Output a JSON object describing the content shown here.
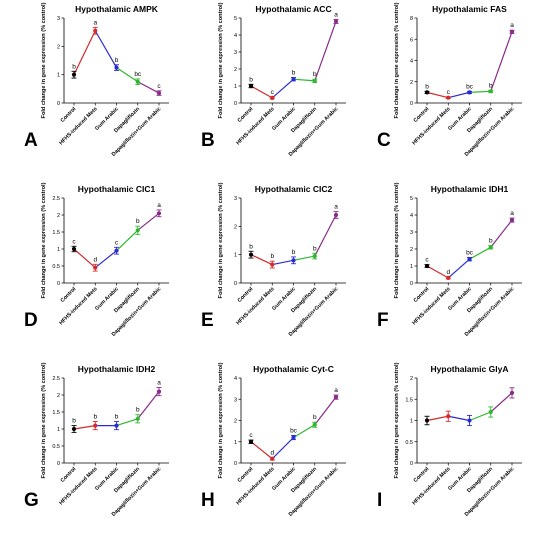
{
  "colors": {
    "control": "#000000",
    "hfhs": "#d42a2a",
    "gum": "#2b2bd6",
    "dapa": "#2db82d",
    "combo": "#8a2a8a"
  },
  "categories": [
    "Control",
    "HFHS-induced Mets",
    "Gum Arabic",
    "Dapagliflozin",
    "Dapagliflozin+Gum Arabic"
  ],
  "chart_data": [
    {
      "type": "line",
      "panel": "A",
      "title": "Hypothalamic AMPK",
      "ylabel": "Fold change in gene expression (% control)",
      "ylim": [
        0,
        3
      ],
      "yticks": [
        0,
        1,
        2,
        3
      ],
      "categories": [
        "Control",
        "HFHS-induced Mets",
        "Gum Arabic",
        "Dapagliflozin",
        "Dapagliflozin+Gum Arabic"
      ],
      "values": [
        1.0,
        2.55,
        1.25,
        0.75,
        0.35
      ],
      "errors": [
        0.12,
        0.12,
        0.1,
        0.1,
        0.08
      ],
      "letters": [
        "b",
        "a",
        "b",
        "bc",
        "c"
      ]
    },
    {
      "type": "line",
      "panel": "B",
      "title": "Hypothalamic ACC",
      "ylabel": "Fold change in gene expression (% control)",
      "ylim": [
        0,
        5
      ],
      "yticks": [
        0,
        1,
        2,
        3,
        4,
        5
      ],
      "categories": [
        "Control",
        "HFHS-induced Mets",
        "Gum Arabic",
        "Dapagliflozin",
        "Dapagliflozin+Gum Arabic"
      ],
      "values": [
        1.0,
        0.3,
        1.4,
        1.3,
        4.8
      ],
      "errors": [
        0.1,
        0.06,
        0.1,
        0.1,
        0.12
      ],
      "letters": [
        "b",
        "c",
        "b",
        "b",
        "a"
      ]
    },
    {
      "type": "line",
      "panel": "C",
      "title": "Hypothalamic FAS",
      "ylabel": "Fold change in gene expression (% control)",
      "ylim": [
        0,
        8
      ],
      "yticks": [
        0,
        2,
        4,
        6,
        8
      ],
      "categories": [
        "Control",
        "HFHS-induced Mets",
        "Gum Arabic",
        "Dapagliflozin",
        "Dapagliflozin+Gum Arabic"
      ],
      "values": [
        1.0,
        0.5,
        1.0,
        1.1,
        6.7
      ],
      "errors": [
        0.1,
        0.08,
        0.1,
        0.1,
        0.15
      ],
      "letters": [
        "b",
        "c",
        "bc",
        "b",
        "a"
      ]
    },
    {
      "type": "line",
      "panel": "D",
      "title": "Hypothalamic CIC1",
      "ylabel": "Fold change in gene expression (% control)",
      "ylim": [
        0,
        2.5
      ],
      "yticks": [
        0,
        0.5,
        1.0,
        1.5,
        2.0,
        2.5
      ],
      "categories": [
        "Control",
        "HFHS-induced Mets",
        "Gum Arabic",
        "Dapagliflozin",
        "Dapagliflozin+Gum Arabic"
      ],
      "values": [
        1.0,
        0.45,
        0.95,
        1.55,
        2.05
      ],
      "errors": [
        0.08,
        0.1,
        0.1,
        0.12,
        0.1
      ],
      "letters": [
        "c",
        "d",
        "c",
        "b",
        "a"
      ]
    },
    {
      "type": "line",
      "panel": "E",
      "title": "Hypothalamic CIC2",
      "ylabel": "Fold change in gene expression (% control)",
      "ylim": [
        0,
        3
      ],
      "yticks": [
        0,
        1,
        2,
        3
      ],
      "categories": [
        "Control",
        "HFHS-induced Mets",
        "Gum Arabic",
        "Dapagliflozin",
        "Dapagliflozin+Gum Arabic"
      ],
      "values": [
        1.0,
        0.65,
        0.8,
        0.95,
        2.4
      ],
      "errors": [
        0.12,
        0.12,
        0.12,
        0.1,
        0.12
      ],
      "letters": [
        "b",
        "b",
        "b",
        "b",
        "a"
      ]
    },
    {
      "type": "line",
      "panel": "F",
      "title": "Hypothalamic IDH1",
      "ylabel": "Fold change in gene expression (% control)",
      "ylim": [
        0,
        5
      ],
      "yticks": [
        0,
        1,
        2,
        3,
        4,
        5
      ],
      "categories": [
        "Control",
        "HFHS-induced Mets",
        "Gum Arabic",
        "Dapagliflozin",
        "Dapagliflozin+Gum Arabic"
      ],
      "values": [
        1.0,
        0.3,
        1.4,
        2.1,
        3.7
      ],
      "errors": [
        0.08,
        0.06,
        0.1,
        0.1,
        0.12
      ],
      "letters": [
        "c",
        "d",
        "bc",
        "b",
        "a"
      ]
    },
    {
      "type": "line",
      "panel": "G",
      "title": "Hypothalamic IDH2",
      "ylabel": "Fold change in gene expression (% control)",
      "ylim": [
        0,
        2.5
      ],
      "yticks": [
        0,
        0.5,
        1.0,
        1.5,
        2.0,
        2.5
      ],
      "categories": [
        "Control",
        "HFHS-induced Mets",
        "Gum Arabic",
        "Dapagliflozin",
        "Dapagliflozin+Gum Arabic"
      ],
      "values": [
        1.0,
        1.1,
        1.1,
        1.3,
        2.1
      ],
      "errors": [
        0.1,
        0.12,
        0.12,
        0.12,
        0.12
      ],
      "letters": [
        "b",
        "b",
        "b",
        "b",
        "a"
      ]
    },
    {
      "type": "line",
      "panel": "H",
      "title": "Hypothalamic Cyt-C",
      "ylabel": "Fold change in gene expression (% control)",
      "ylim": [
        0,
        4
      ],
      "yticks": [
        0,
        1,
        2,
        3,
        4
      ],
      "categories": [
        "Control",
        "HFHS-induced Mets",
        "Gum Arabic",
        "Dapagliflozin",
        "Dapagliflozin+Gum Arabic"
      ],
      "values": [
        1.0,
        0.2,
        1.2,
        1.8,
        3.1
      ],
      "errors": [
        0.08,
        0.06,
        0.1,
        0.12,
        0.1
      ],
      "letters": [
        "c",
        "d",
        "bc",
        "b",
        "a"
      ]
    },
    {
      "type": "line",
      "panel": "I",
      "title": "Hypothalamic GlyA",
      "ylabel": "Fold change in gene expression (% control)",
      "ylim": [
        0,
        2.0
      ],
      "yticks": [
        0,
        0.5,
        1.0,
        1.5,
        2.0
      ],
      "categories": [
        "Control",
        "HFHS-induced Mets",
        "Gum Arabic",
        "Dapagliflozin",
        "Dapagliflozin+Gum Arabic"
      ],
      "values": [
        1.0,
        1.1,
        1.0,
        1.2,
        1.65
      ],
      "errors": [
        0.1,
        0.12,
        0.12,
        0.12,
        0.12
      ],
      "letters": [
        "",
        "",
        "",
        "",
        ""
      ]
    }
  ]
}
